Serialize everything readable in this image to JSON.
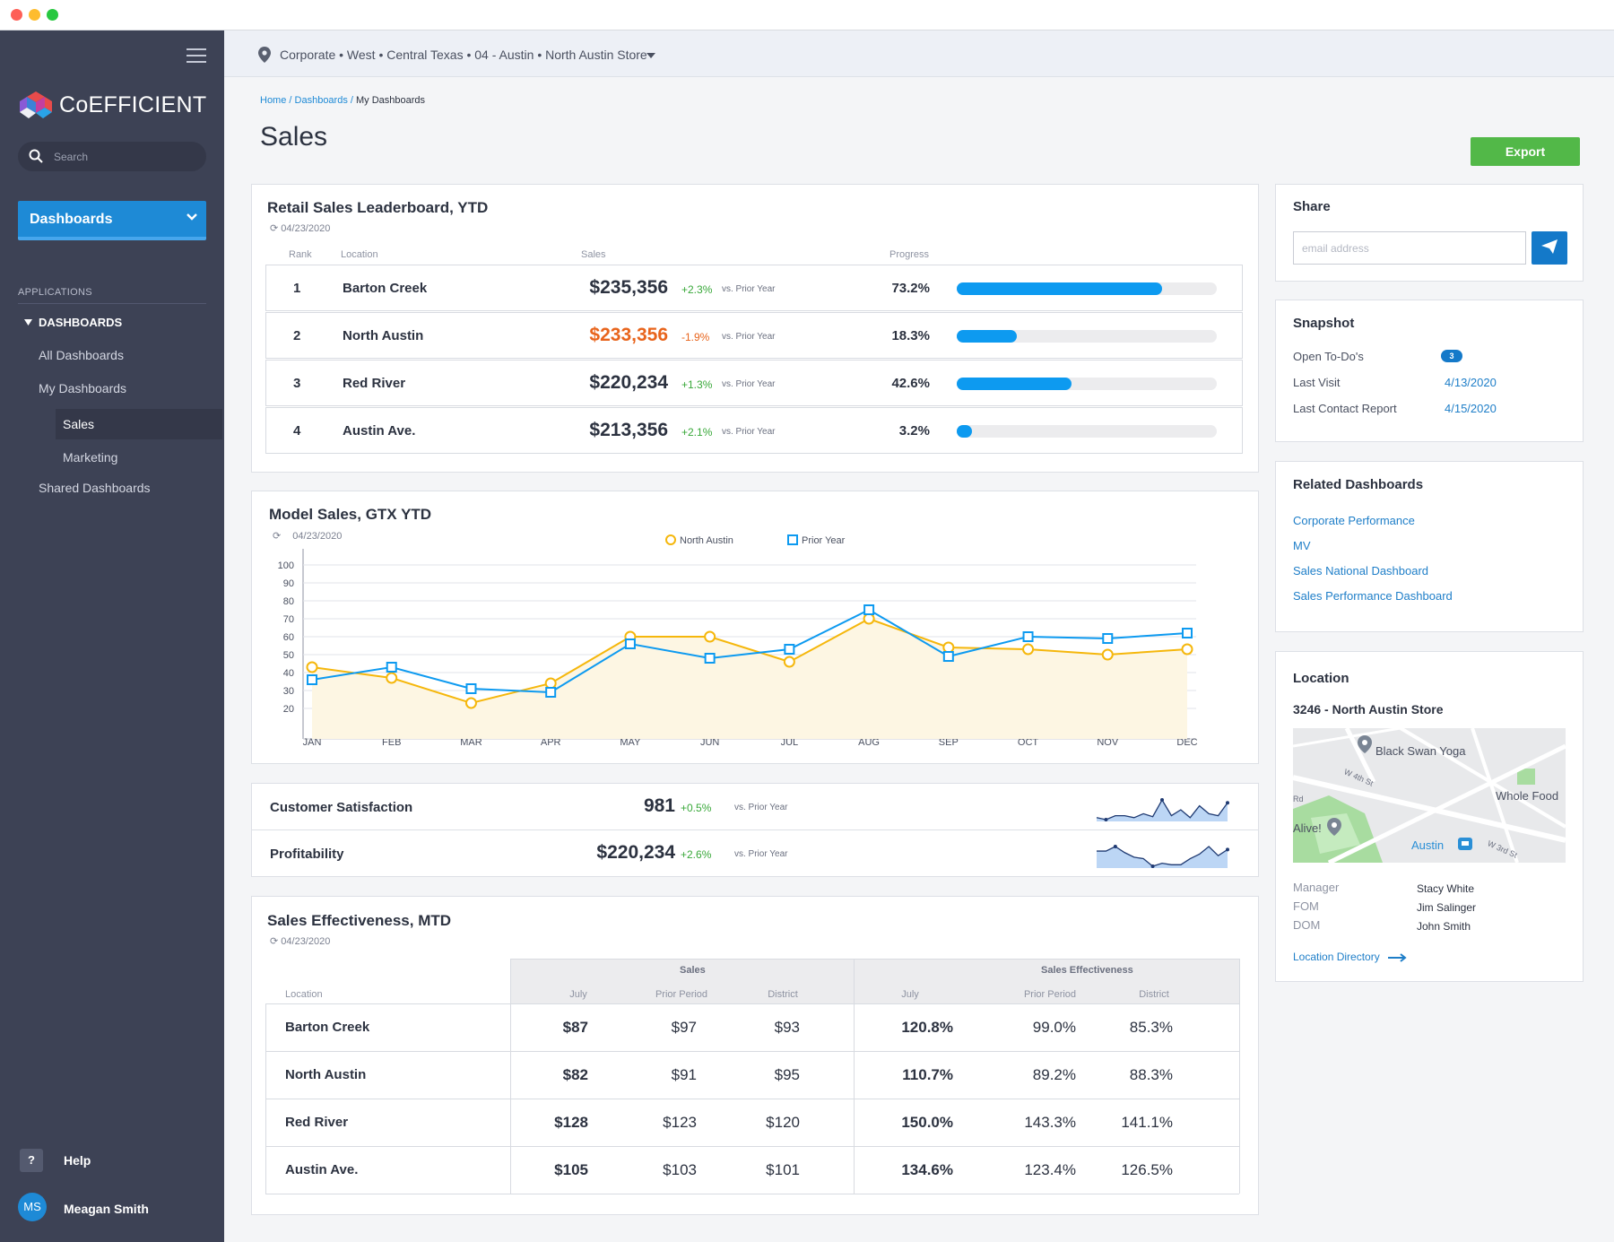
{
  "app": {
    "brand": "CoEFFICIENT",
    "search_placeholder": "Search",
    "dashboards_button": "Dashboards"
  },
  "sidebar": {
    "section_label": "APPLICATIONS",
    "group_label": "DASHBOARDS",
    "items": [
      {
        "label": "All Dashboards"
      },
      {
        "label": "My Dashboards"
      },
      {
        "label": "Sales"
      },
      {
        "label": "Marketing"
      },
      {
        "label": "Shared Dashboards"
      }
    ],
    "help_icon_text": "?",
    "help_label": "Help",
    "user_initials": "MS",
    "user_name": "Meagan Smith"
  },
  "topbar": {
    "location_path": "Corporate • West • Central Texas • 04 - Austin • North Austin Store"
  },
  "breadcrumb": {
    "home": "Home",
    "sep1": " / ",
    "dashboards": "Dashboards",
    "sep2": " / ",
    "current": "My Dashboards"
  },
  "page": {
    "title": "Sales",
    "export_label": "Export"
  },
  "leaderboard": {
    "title": "Retail Sales Leaderboard, YTD",
    "refresh_date": "04/23/2020",
    "headers": {
      "rank": "Rank",
      "location": "Location",
      "sales": "Sales",
      "progress": "Progress"
    },
    "rows": [
      {
        "rank": "1",
        "location": "Barton Creek",
        "sales": "$235,356",
        "change": "+2.3%",
        "vs": "vs. Prior Year",
        "progress_label": "73.2%",
        "bar_fill": 0.79
      },
      {
        "rank": "2",
        "location": "North Austin",
        "sales": "$233,356",
        "change": "-1.9%",
        "vs": "vs. Prior Year",
        "progress_label": "18.3%",
        "bar_fill": 0.23
      },
      {
        "rank": "3",
        "location": "Red River",
        "sales": "$220,234",
        "change": "+1.3%",
        "vs": "vs. Prior Year",
        "progress_label": "42.6%",
        "bar_fill": 0.44
      },
      {
        "rank": "4",
        "location": "Austin Ave.",
        "sales": "$213,356",
        "change": "+2.1%",
        "vs": "vs. Prior Year",
        "progress_label": "3.2%",
        "bar_fill": 0.06
      }
    ],
    "colors": {
      "positive": "#38a839",
      "negative": "#e8641c",
      "bar": "#0d9af0"
    }
  },
  "chart_data": {
    "type": "line",
    "title": "Model Sales, GTX YTD",
    "refresh_date": "04/23/2020",
    "categories": [
      "JAN",
      "FEB",
      "MAR",
      "APR",
      "MAY",
      "JUN",
      "JUL",
      "AUG",
      "SEP",
      "OCT",
      "NOV",
      "DEC"
    ],
    "yticks": [
      20,
      30,
      40,
      50,
      60,
      70,
      80,
      90,
      100
    ],
    "ylim": [
      10,
      100
    ],
    "grid": true,
    "legend_position": "top-center",
    "series": [
      {
        "name": "North Austin",
        "marker": "circle",
        "color": "#f5b70c",
        "fill": "#fdf6e3",
        "values": [
          43,
          37,
          23,
          34,
          60,
          60,
          46,
          70,
          54,
          53,
          50,
          53
        ]
      },
      {
        "name": "Prior Year",
        "marker": "square",
        "color": "#0d9af0",
        "values": [
          36,
          43,
          31,
          29,
          56,
          48,
          53,
          75,
          49,
          60,
          59,
          62
        ]
      }
    ]
  },
  "kpis": [
    {
      "label": "Customer Satisfaction",
      "value": "981",
      "change": "+0.5%",
      "vs": "vs. Prior Year",
      "spark": [
        20,
        18,
        22,
        22,
        20,
        24,
        21,
        38,
        22,
        28,
        20,
        32,
        24,
        22,
        35
      ]
    },
    {
      "label": "Profitability",
      "value": "$220,234",
      "change": "+2.6%",
      "vs": "vs. Prior Year",
      "spark": [
        30,
        30,
        33,
        29,
        26,
        25,
        20,
        22,
        21,
        21,
        25,
        28,
        33,
        27,
        31
      ]
    }
  ],
  "effectiveness": {
    "title": "Sales Effectiveness, MTD",
    "refresh_date": "04/23/2020",
    "group_sales": "Sales",
    "group_eff": "Sales Effectiveness",
    "col_location": "Location",
    "columns": [
      "July",
      "Prior Period",
      "District",
      "July",
      "Prior Period",
      "District"
    ],
    "rows": [
      {
        "location": "Barton Creek",
        "cells": [
          "$87",
          "$97",
          "$93",
          "120.8%",
          "99.0%",
          "85.3%"
        ]
      },
      {
        "location": "North Austin",
        "cells": [
          "$82",
          "$91",
          "$95",
          "110.7%",
          "89.2%",
          "88.3%"
        ]
      },
      {
        "location": "Red River",
        "cells": [
          "$128",
          "$123",
          "$120",
          "150.0%",
          "143.3%",
          "141.1%"
        ]
      },
      {
        "location": "Austin Ave.",
        "cells": [
          "$105",
          "$103",
          "$101",
          "134.6%",
          "123.4%",
          "126.5%"
        ]
      }
    ]
  },
  "share": {
    "title": "Share",
    "email_placeholder": "email address"
  },
  "snapshot": {
    "title": "Snapshot",
    "open_todos_label": "Open To-Do's",
    "open_todos_count": "3",
    "last_visit_label": "Last Visit",
    "last_visit": "4/13/2020",
    "last_contact_label": "Last Contact Report",
    "last_contact": "4/15/2020"
  },
  "related": {
    "title": "Related Dashboards",
    "links": [
      "Corporate Performance",
      "MV",
      "Sales National Dashboard",
      "Sales Performance Dashboard"
    ]
  },
  "location": {
    "title": "Location",
    "store_name": "3246 - North Austin Store",
    "map_labels": {
      "poi1": "Black Swan Yoga",
      "street1": "W 4th St",
      "poi2": "Whole Food",
      "poi3": "Alive!",
      "poi4": "Austin",
      "street2": "W 3rd St",
      "edge": "Rd"
    },
    "manager_label": "Manager",
    "manager": "Stacy White",
    "fom_label": "FOM",
    "fom": "Jim Salinger",
    "dom_label": "DOM",
    "dom": "John Smith",
    "directory_link": "Location Directory"
  }
}
